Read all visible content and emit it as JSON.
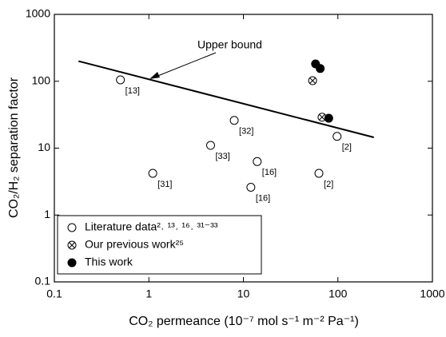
{
  "chart_data": {
    "type": "scatter",
    "x_label": "CO₂ permeance (10⁻⁷ mol s⁻¹ m⁻² Pa⁻¹)",
    "y_label": "CO₂/H₂ separation factor",
    "xscale": "log",
    "yscale": "log",
    "xlim": [
      0.1,
      1000
    ],
    "ylim": [
      0.1,
      1000
    ],
    "xticks": [
      0.1,
      1,
      10,
      100,
      1000
    ],
    "yticks": [
      0.1,
      1,
      10,
      100,
      1000
    ],
    "legend": "lower left",
    "series": [
      {
        "name": "Literature data²˒ ¹³˒ ¹⁶˒ ³¹⁻³³",
        "marker": "open",
        "color": "#000000",
        "x": [
          0.5,
          8,
          4.5,
          1.1,
          14,
          12,
          98,
          63
        ],
        "values": [
          105,
          26,
          11,
          4.2,
          6.3,
          2.6,
          15,
          4.2
        ],
        "point_labels": [
          "[13]",
          "[32]",
          "[33]",
          "[31]",
          "[16]",
          "[16]",
          "[2]",
          "[2]"
        ]
      },
      {
        "name": "Our previous work²⁵",
        "marker": "crossed",
        "color": "#000000",
        "x": [
          54,
          68
        ],
        "values": [
          102,
          29
        ]
      },
      {
        "name": "This work",
        "marker": "filled",
        "color": "#000000",
        "x": [
          58,
          65,
          80
        ],
        "values": [
          182,
          155,
          28
        ]
      }
    ],
    "upper_bound": {
      "x": [
        0.18,
        240
      ],
      "values": [
        200,
        14.5
      ]
    },
    "annotation": "Upper bound"
  }
}
